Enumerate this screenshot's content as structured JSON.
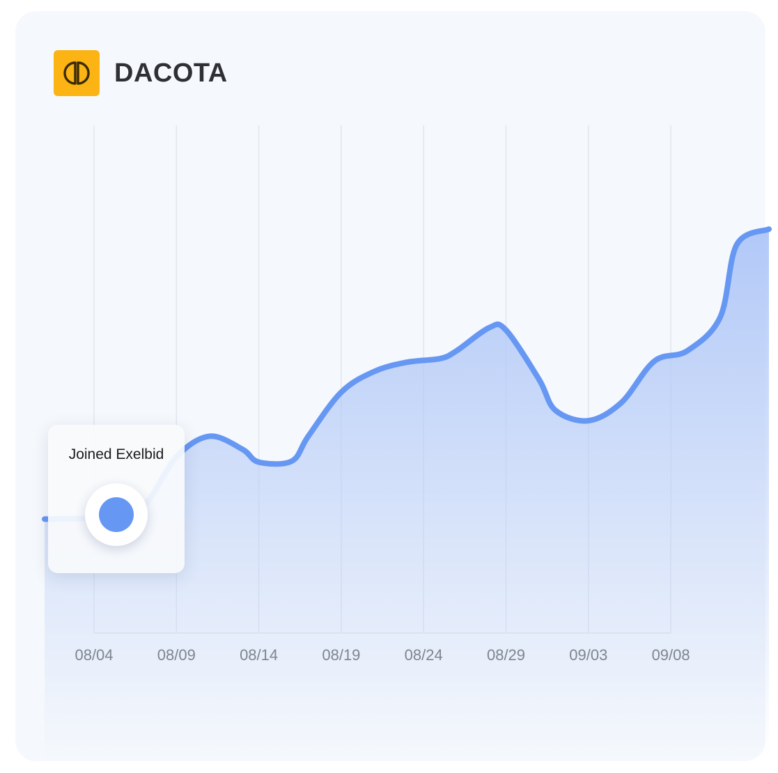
{
  "brand": {
    "name": "DACOTA",
    "logo_color": "#fbb413"
  },
  "annotation": {
    "label": "Joined Exelbid",
    "x": "08/05"
  },
  "colors": {
    "line": "#6697f3",
    "area_top": "#aec6f7",
    "grid": "#e1e7ef",
    "axis_text": "#7d8591"
  },
  "chart_data": {
    "type": "area",
    "title": "",
    "xlabel": "",
    "ylabel": "",
    "grid": "vertical",
    "categories": [
      "08/04",
      "08/09",
      "08/14",
      "08/19",
      "08/24",
      "08/29",
      "09/03",
      "09/08"
    ],
    "x_range": [
      "08/01",
      "09/14"
    ],
    "y_range": [
      0,
      100
    ],
    "series": [
      {
        "points": [
          [
            "08/01",
            22
          ],
          [
            "08/03",
            22.1
          ],
          [
            "08/05",
            22.5
          ],
          [
            "08/07",
            24.5
          ],
          [
            "08/09",
            34
          ],
          [
            "08/11",
            38
          ],
          [
            "08/13",
            35.5
          ],
          [
            "08/14",
            33
          ],
          [
            "08/16",
            33.2
          ],
          [
            "08/17",
            38
          ],
          [
            "08/19",
            46.5
          ],
          [
            "08/21",
            50.5
          ],
          [
            "08/23",
            52.3
          ],
          [
            "08/25",
            53
          ],
          [
            "08/26",
            54.5
          ],
          [
            "08/28",
            59
          ],
          [
            "08/29",
            58.5
          ],
          [
            "08/31",
            49
          ],
          [
            "09/01",
            43
          ],
          [
            "09/03",
            41
          ],
          [
            "09/05",
            44.5
          ],
          [
            "09/07",
            52.5
          ],
          [
            "09/09",
            54.5
          ],
          [
            "09/11",
            61
          ],
          [
            "09/12",
            75
          ],
          [
            "09/14",
            78
          ]
        ]
      }
    ]
  }
}
